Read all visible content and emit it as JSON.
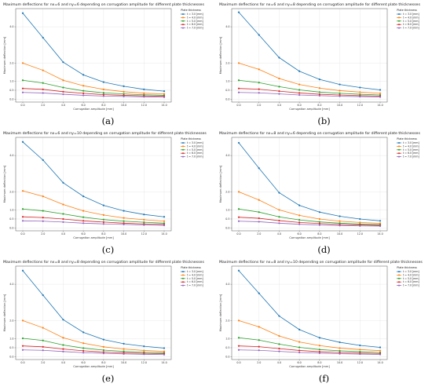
{
  "figure": {
    "panel_labels": [
      "(a)",
      "(b)",
      "(c)",
      "(d)",
      "(e)",
      "(f)"
    ]
  },
  "chart_data": [
    {
      "panel": "(a)",
      "type": "line",
      "title": "Maximum deflections for nx=6 and ny=6 depending on corrugation amplitude for different plate thicknesses",
      "xlabel": "Corrugation amplitude [mm]",
      "ylabel": "Maximum deflection [mm]",
      "legend_title": "Plate thickness",
      "legend_position": "right",
      "grid": true,
      "x": [
        0,
        2,
        4,
        6,
        8,
        10,
        12,
        14
      ],
      "x_ticks": [
        "0.0",
        "2.0",
        "4.0",
        "6.0",
        "8.0",
        "10.0",
        "12.0",
        "14.0"
      ],
      "xlim": [
        -0.7,
        14.7
      ],
      "ylim": [
        -0.15,
        5.0
      ],
      "y_ticks": [
        0.0,
        0.5,
        1.0,
        2.0,
        4.0
      ],
      "y_tick_labels": [
        "0.0",
        "0.5",
        "1.0",
        "2.0",
        "4.0"
      ],
      "series": [
        {
          "name": "t = 3.0 [mm]",
          "color": "#1f77b4",
          "values": [
            4.75,
            3.4,
            2.05,
            1.35,
            0.95,
            0.72,
            0.55,
            0.45
          ]
        },
        {
          "name": "t = 4.0 [mm]",
          "color": "#ff7f0e",
          "values": [
            2.0,
            1.6,
            1.05,
            0.75,
            0.55,
            0.42,
            0.34,
            0.3
          ]
        },
        {
          "name": "t = 5.0 [mm]",
          "color": "#2ca02c",
          "values": [
            1.05,
            0.9,
            0.65,
            0.47,
            0.36,
            0.3,
            0.25,
            0.22
          ]
        },
        {
          "name": "t = 6.0 [mm]",
          "color": "#d62728",
          "values": [
            0.6,
            0.55,
            0.42,
            0.33,
            0.26,
            0.22,
            0.19,
            0.17
          ]
        },
        {
          "name": "t = 7.0 [mm]",
          "color": "#9467bd",
          "values": [
            0.38,
            0.35,
            0.28,
            0.22,
            0.18,
            0.16,
            0.14,
            0.12
          ]
        }
      ]
    },
    {
      "panel": "(b)",
      "type": "line",
      "title": "Maximum deflections for nx=6 and ny=8 depending on corrugation amplitude for different plate thicknesses",
      "xlabel": "Corrugation amplitude [mm]",
      "ylabel": "Maximum deflection [mm]",
      "legend_title": "Plate thickness",
      "legend_position": "right",
      "grid": true,
      "x": [
        0,
        2,
        4,
        6,
        8,
        10,
        12,
        14
      ],
      "x_ticks": [
        "0.0",
        "2.0",
        "4.0",
        "6.0",
        "8.0",
        "10.0",
        "12.0",
        "14.0"
      ],
      "xlim": [
        -0.7,
        14.7
      ],
      "ylim": [
        -0.15,
        5.0
      ],
      "y_ticks": [
        0.0,
        0.5,
        1.0,
        2.0,
        4.0
      ],
      "y_tick_labels": [
        "0.0",
        "0.5",
        "1.0",
        "2.0",
        "4.0"
      ],
      "series": [
        {
          "name": "t = 3.0 [mm]",
          "color": "#1f77b4",
          "values": [
            4.8,
            3.55,
            2.3,
            1.55,
            1.1,
            0.82,
            0.65,
            0.52
          ]
        },
        {
          "name": "t = 4.0 [mm]",
          "color": "#ff7f0e",
          "values": [
            2.0,
            1.65,
            1.15,
            0.82,
            0.62,
            0.48,
            0.4,
            0.33
          ]
        },
        {
          "name": "t = 5.0 [mm]",
          "color": "#2ca02c",
          "values": [
            1.05,
            0.92,
            0.7,
            0.52,
            0.4,
            0.33,
            0.28,
            0.24
          ]
        },
        {
          "name": "t = 6.0 [mm]",
          "color": "#d62728",
          "values": [
            0.6,
            0.56,
            0.45,
            0.35,
            0.28,
            0.24,
            0.2,
            0.18
          ]
        },
        {
          "name": "t = 7.0 [mm]",
          "color": "#9467bd",
          "values": [
            0.38,
            0.36,
            0.3,
            0.24,
            0.2,
            0.17,
            0.15,
            0.13
          ]
        }
      ]
    },
    {
      "panel": "(c)",
      "type": "line",
      "title": "Maximum deflections for nx=6 and ny=10 depending on corrugation amplitude for different plate thicknesses",
      "xlabel": "Corrugation amplitude [mm]",
      "ylabel": "Maximum deflection [mm]",
      "legend_title": "Plate thickness",
      "legend_position": "right",
      "grid": true,
      "x": [
        0,
        2,
        4,
        6,
        8,
        10,
        12,
        14
      ],
      "x_ticks": [
        "0.0",
        "2.0",
        "4.0",
        "6.0",
        "8.0",
        "10.0",
        "12.0",
        "14.0"
      ],
      "xlim": [
        -0.7,
        14.7
      ],
      "ylim": [
        -0.15,
        5.0
      ],
      "y_ticks": [
        0.0,
        0.5,
        1.0,
        2.0,
        4.0
      ],
      "y_tick_labels": [
        "0.0",
        "0.5",
        "1.0",
        "2.0",
        "4.0"
      ],
      "series": [
        {
          "name": "t = 3.0 [mm]",
          "color": "#1f77b4",
          "values": [
            4.75,
            3.75,
            2.5,
            1.75,
            1.25,
            0.95,
            0.75,
            0.62
          ]
        },
        {
          "name": "t = 4.0 [mm]",
          "color": "#ff7f0e",
          "values": [
            2.05,
            1.75,
            1.3,
            0.95,
            0.72,
            0.56,
            0.46,
            0.38
          ]
        },
        {
          "name": "t = 5.0 [mm]",
          "color": "#2ca02c",
          "values": [
            1.05,
            0.95,
            0.78,
            0.6,
            0.47,
            0.38,
            0.32,
            0.27
          ]
        },
        {
          "name": "t = 6.0 [mm]",
          "color": "#d62728",
          "values": [
            0.62,
            0.58,
            0.5,
            0.4,
            0.33,
            0.27,
            0.23,
            0.2
          ]
        },
        {
          "name": "t = 7.0 [mm]",
          "color": "#9467bd",
          "values": [
            0.4,
            0.38,
            0.33,
            0.27,
            0.23,
            0.2,
            0.17,
            0.15
          ]
        }
      ]
    },
    {
      "panel": "(d)",
      "type": "line",
      "title": "Maximum deflections for nx=8 and ny=6 depending on corrugation amplitude for different plate thicknesses",
      "xlabel": "Corrugation amplitude [mm]",
      "ylabel": "Maximum deflection [mm]",
      "legend_title": "Plate thickness",
      "legend_position": "right",
      "grid": true,
      "x": [
        0,
        2,
        4,
        6,
        8,
        10,
        12,
        14
      ],
      "x_ticks": [
        "0.0",
        "2.0",
        "4.0",
        "6.0",
        "8.0",
        "10.0",
        "12.0",
        "14.0"
      ],
      "xlim": [
        -0.7,
        14.7
      ],
      "ylim": [
        -0.15,
        5.0
      ],
      "y_ticks": [
        0.0,
        0.5,
        1.0,
        2.0,
        4.0
      ],
      "y_tick_labels": [
        "0.0",
        "0.5",
        "1.0",
        "2.0",
        "4.0"
      ],
      "series": [
        {
          "name": "t = 3.0 [mm]",
          "color": "#1f77b4",
          "values": [
            4.7,
            3.3,
            1.95,
            1.25,
            0.88,
            0.65,
            0.5,
            0.4
          ]
        },
        {
          "name": "t = 4.0 [mm]",
          "color": "#ff7f0e",
          "values": [
            2.0,
            1.55,
            1.0,
            0.7,
            0.5,
            0.38,
            0.31,
            0.26
          ]
        },
        {
          "name": "t = 5.0 [mm]",
          "color": "#2ca02c",
          "values": [
            1.05,
            0.88,
            0.62,
            0.45,
            0.34,
            0.27,
            0.22,
            0.19
          ]
        },
        {
          "name": "t = 6.0 [mm]",
          "color": "#d62728",
          "values": [
            0.6,
            0.54,
            0.41,
            0.31,
            0.25,
            0.2,
            0.17,
            0.15
          ]
        },
        {
          "name": "t = 7.0 [mm]",
          "color": "#9467bd",
          "values": [
            0.38,
            0.35,
            0.27,
            0.21,
            0.17,
            0.14,
            0.12,
            0.11
          ]
        }
      ]
    },
    {
      "panel": "(e)",
      "type": "line",
      "title": "Maximum deflections for nx=8 and ny=8 depending on corrugation amplitude for different plate thicknesses",
      "xlabel": "Corrugation amplitude [mm]",
      "ylabel": "Maximum deflection [mm]",
      "legend_title": "Plate thickness",
      "legend_position": "right",
      "grid": true,
      "x": [
        0,
        2,
        4,
        6,
        8,
        10,
        12,
        14
      ],
      "x_ticks": [
        "0.0",
        "2.0",
        "4.0",
        "6.0",
        "8.0",
        "10.0",
        "12.0",
        "14.0"
      ],
      "xlim": [
        -0.7,
        14.7
      ],
      "ylim": [
        -0.15,
        5.0
      ],
      "y_ticks": [
        0.0,
        0.5,
        1.0,
        2.0,
        4.0
      ],
      "y_tick_labels": [
        "0.0",
        "0.5",
        "1.0",
        "2.0",
        "4.0"
      ],
      "series": [
        {
          "name": "t = 3.0 [mm]",
          "color": "#1f77b4",
          "values": [
            4.75,
            3.4,
            2.05,
            1.35,
            0.95,
            0.72,
            0.58,
            0.48
          ]
        },
        {
          "name": "t = 4.0 [mm]",
          "color": "#ff7f0e",
          "values": [
            2.0,
            1.6,
            1.05,
            0.75,
            0.55,
            0.43,
            0.35,
            0.3
          ]
        },
        {
          "name": "t = 5.0 [mm]",
          "color": "#2ca02c",
          "values": [
            1.02,
            0.9,
            0.65,
            0.48,
            0.37,
            0.3,
            0.25,
            0.22
          ]
        },
        {
          "name": "t = 6.0 [mm]",
          "color": "#d62728",
          "values": [
            0.6,
            0.55,
            0.43,
            0.33,
            0.26,
            0.22,
            0.19,
            0.17
          ]
        },
        {
          "name": "t = 7.0 [mm]",
          "color": "#9467bd",
          "values": [
            0.38,
            0.36,
            0.29,
            0.23,
            0.19,
            0.16,
            0.14,
            0.12
          ]
        }
      ]
    },
    {
      "panel": "(f)",
      "type": "line",
      "title": "Maximum deflections for nx=8 and ny=10 depending on corrugation amplitude for different plate thicknesses",
      "xlabel": "Corrugation amplitude [mm]",
      "ylabel": "Maximum deflection [mm]",
      "legend_title": "Plate thickness",
      "legend_position": "right",
      "grid": true,
      "x": [
        0,
        2,
        4,
        6,
        8,
        10,
        12,
        14
      ],
      "x_ticks": [
        "0.0",
        "2.0",
        "4.0",
        "6.0",
        "8.0",
        "10.0",
        "12.0",
        "14.0"
      ],
      "xlim": [
        -0.7,
        14.7
      ],
      "ylim": [
        -0.15,
        5.0
      ],
      "y_ticks": [
        0.0,
        0.5,
        1.0,
        2.0,
        4.0
      ],
      "y_tick_labels": [
        "0.0",
        "0.5",
        "1.0",
        "2.0",
        "4.0"
      ],
      "series": [
        {
          "name": "t = 3.0 [mm]",
          "color": "#1f77b4",
          "values": [
            4.75,
            3.5,
            2.25,
            1.5,
            1.05,
            0.8,
            0.63,
            0.52
          ]
        },
        {
          "name": "t = 4.0 [mm]",
          "color": "#ff7f0e",
          "values": [
            2.0,
            1.65,
            1.15,
            0.82,
            0.62,
            0.48,
            0.4,
            0.34
          ]
        },
        {
          "name": "t = 5.0 [mm]",
          "color": "#2ca02c",
          "values": [
            1.05,
            0.92,
            0.7,
            0.52,
            0.4,
            0.33,
            0.28,
            0.24
          ]
        },
        {
          "name": "t = 6.0 [mm]",
          "color": "#d62728",
          "values": [
            0.6,
            0.56,
            0.45,
            0.35,
            0.28,
            0.24,
            0.2,
            0.18
          ]
        },
        {
          "name": "t = 7.0 [mm]",
          "color": "#9467bd",
          "values": [
            0.38,
            0.36,
            0.3,
            0.24,
            0.2,
            0.17,
            0.15,
            0.13
          ]
        }
      ]
    }
  ]
}
